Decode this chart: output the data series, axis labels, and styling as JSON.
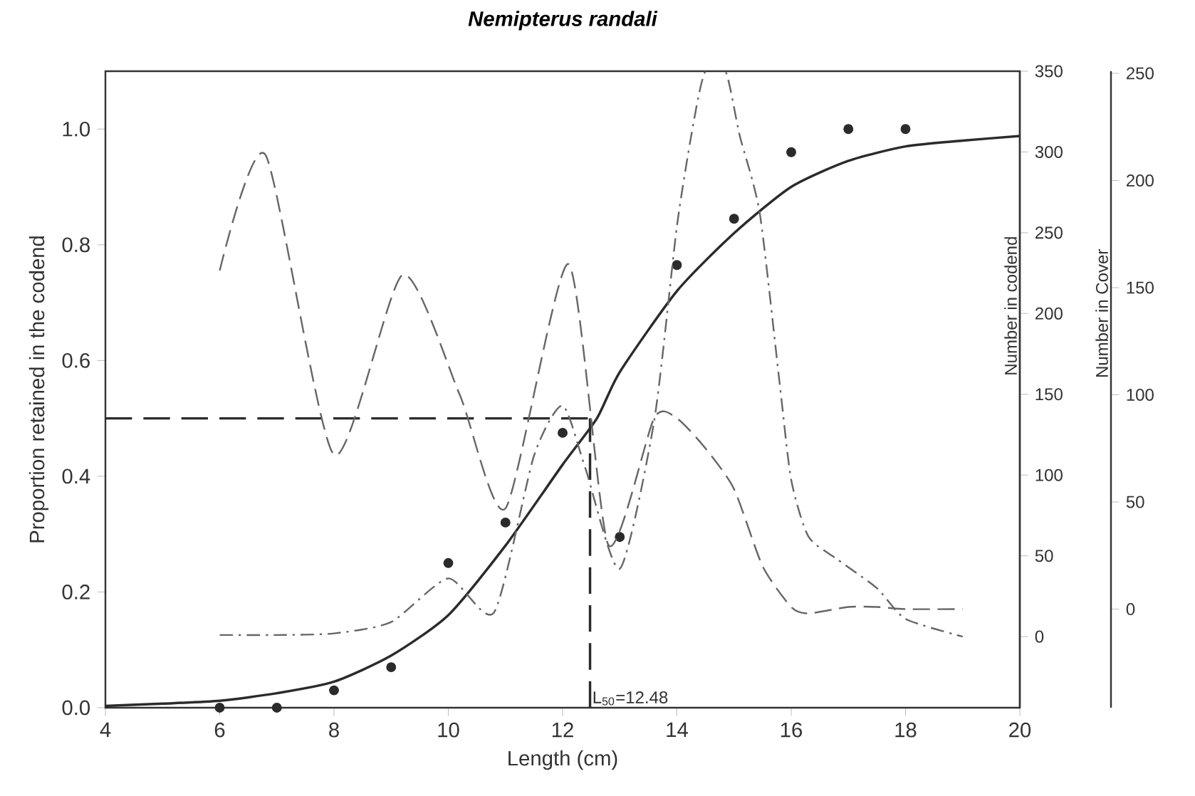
{
  "chart_data": {
    "type": "line",
    "title": "Nemipterus randali",
    "xlabel": "Length (cm)",
    "ylabel": "Proportion retained in the codend",
    "y2label": "Number in codend",
    "y3label": "Number in Cover",
    "xlim": [
      4,
      20
    ],
    "xticks": [
      4,
      6,
      8,
      10,
      12,
      14,
      16,
      18,
      20
    ],
    "ylim": [
      0,
      1.1
    ],
    "yticks": [
      {
        "value": 0,
        "label": "0.0"
      },
      {
        "value": 0.2,
        "label": "0.2"
      },
      {
        "value": 0.4,
        "label": "0.4"
      },
      {
        "value": 0.6,
        "label": "0.6"
      },
      {
        "value": 0.8,
        "label": "0.8"
      },
      {
        "value": 1,
        "label": "1.0"
      }
    ],
    "y2lim": [
      -44,
      350
    ],
    "y2ticks": [
      0,
      50,
      100,
      150,
      200,
      250,
      300,
      350
    ],
    "y3lim": [
      -46,
      251
    ],
    "y3ticks": [
      0,
      50,
      100,
      150,
      200,
      250
    ],
    "grid": false,
    "series": [
      {
        "type": "scatter",
        "marker": "circle",
        "color": "#2b2b2b",
        "x": [
          6,
          7,
          8,
          9,
          10,
          11,
          12,
          13,
          14,
          15,
          16,
          17,
          18
        ],
        "values": [
          0,
          0,
          0.03,
          0.07,
          0.25,
          0.32,
          0.475,
          0.295,
          0.765,
          0.845,
          0.96,
          1.0,
          1.0
        ]
      },
      {
        "line_style": "solid",
        "color": "#2b2b2b",
        "x": [
          4,
          5,
          6,
          7,
          8,
          9,
          10,
          11,
          12,
          12.6,
          13,
          14,
          15,
          16,
          17,
          18,
          19,
          20
        ],
        "values": [
          0.003,
          0.007,
          0.012,
          0.025,
          0.045,
          0.09,
          0.16,
          0.28,
          0.42,
          0.5,
          0.58,
          0.72,
          0.82,
          0.9,
          0.945,
          0.97,
          0.98,
          0.988
        ]
      },
      {
        "line_style": "dashed",
        "color": "#666666",
        "axis": "y3",
        "x": [
          6,
          6.8,
          8,
          9.2,
          10.2,
          11,
          12.1,
          12.8,
          13.6,
          14,
          14.5,
          15,
          15.5,
          16,
          16.3,
          17,
          17.5,
          18,
          19
        ],
        "values": [
          158,
          212,
          72,
          156,
          100,
          47,
          161,
          30,
          89,
          89,
          75,
          56,
          20,
          1,
          -2,
          1,
          1,
          0,
          0
        ]
      },
      {
        "line_style": "dashdot",
        "color": "#666666",
        "axis": "y2",
        "x": [
          6,
          7,
          8,
          9,
          10,
          10.8,
          11.5,
          12,
          12.4,
          13,
          13.6,
          14,
          14.3,
          14.5,
          14.85,
          15.1,
          15.45,
          15.8,
          16,
          16.3,
          16.8,
          17.5,
          18,
          19
        ],
        "values": [
          1,
          1,
          2,
          9,
          36,
          15,
          112,
          143,
          104,
          42,
          133,
          254,
          320,
          350,
          350,
          310,
          262,
          156,
          97,
          62,
          48,
          30,
          11,
          0
        ]
      }
    ],
    "ref_lines": [
      {
        "axis": "y",
        "value": 0.5,
        "line_style": "dashed",
        "color": "#2b2b2b"
      },
      {
        "axis": "x",
        "value": 12.48,
        "line_style": "dashed",
        "color": "#2b2b2b",
        "label": "L$_{50}$=12.48"
      }
    ]
  }
}
